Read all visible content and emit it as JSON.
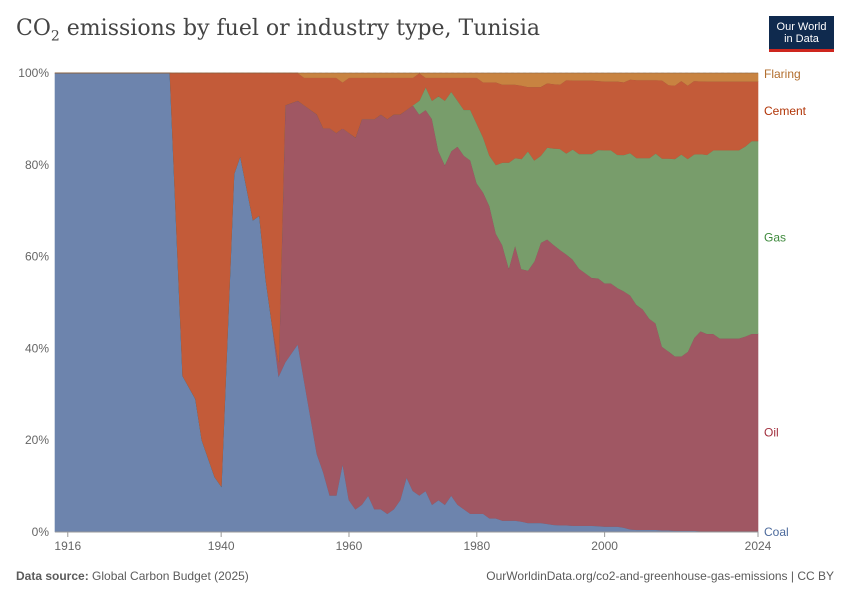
{
  "header": {
    "title_main": "CO",
    "title_sub": "2",
    "title_rest": " emissions by fuel or industry type, Tunisia",
    "logo_line1": "Our World",
    "logo_line2": "in Data"
  },
  "footer": {
    "source_label": "Data source:",
    "source_value": " Global Carbon Budget (2025)",
    "url": "OurWorldinData.org/co2-and-greenhouse-gas-emissions | CC BY"
  },
  "chart_data": {
    "type": "area",
    "stacked": true,
    "percent": true,
    "title": "CO₂ emissions by fuel or industry type, Tunisia",
    "x_range": [
      1914,
      2024
    ],
    "ylim": [
      0,
      100
    ],
    "y_ticks": [
      "0%",
      "20%",
      "40%",
      "60%",
      "80%",
      "100%"
    ],
    "y_tick_values": [
      0,
      20,
      40,
      60,
      80,
      100
    ],
    "x_ticks": [
      "1916",
      "1940",
      "1960",
      "1980",
      "2000",
      "2024"
    ],
    "x_tick_values": [
      1916,
      1940,
      1960,
      1980,
      2000,
      2024
    ],
    "grid": "horizontal",
    "legend": "right, inline labels",
    "x": [
      1914,
      1932,
      1934,
      1936,
      1937,
      1939,
      1940,
      1942,
      1943,
      1945,
      1946,
      1947,
      1948,
      1949,
      1950,
      1952,
      1953,
      1955,
      1956,
      1957,
      1958,
      1959,
      1960,
      1961,
      1962,
      1963,
      1964,
      1965,
      1966,
      1967,
      1968,
      1969,
      1970,
      1971,
      1972,
      1973,
      1974,
      1975,
      1976,
      1977,
      1978,
      1979,
      1980,
      1981,
      1982,
      1983,
      1984,
      1985,
      1986,
      1987,
      1988,
      1989,
      1990,
      1991,
      1992,
      1993,
      1994,
      1995,
      1996,
      1997,
      1998,
      1999,
      2000,
      2001,
      2002,
      2003,
      2004,
      2005,
      2006,
      2007,
      2008,
      2009,
      2010,
      2011,
      2012,
      2013,
      2014,
      2015,
      2016,
      2017,
      2018,
      2019,
      2020,
      2021,
      2022,
      2023,
      2024
    ],
    "series": [
      {
        "name": "Coal",
        "color": "#6d84ad",
        "label_color": "#4c6a9c",
        "values": [
          100,
          100,
          34,
          29,
          20,
          12,
          10,
          78,
          82,
          68,
          69,
          55,
          45,
          34,
          37,
          41,
          33,
          17,
          13,
          8,
          8,
          15,
          7,
          5,
          6,
          8,
          5,
          5,
          4,
          5,
          7,
          12,
          9,
          8,
          9,
          6,
          7,
          6,
          8,
          6,
          5,
          4,
          4,
          4,
          3,
          3,
          2.5,
          2.5,
          2.5,
          2.3,
          2,
          2,
          2,
          1.8,
          1.6,
          1.5,
          1.5,
          1.4,
          1.4,
          1.4,
          1.4,
          1.3,
          1.2,
          1.2,
          1.2,
          1,
          0.6,
          0.5,
          0.5,
          0.5,
          0.5,
          0.4,
          0.4,
          0.3,
          0.3,
          0.3,
          0.3,
          0.2,
          0.2,
          0.2,
          0.2,
          0.2,
          0.2,
          0.2,
          0.2,
          0.2,
          0.2
        ]
      },
      {
        "name": "Oil",
        "color": "#a05763",
        "label_color": "#a2303e",
        "values": [
          0,
          0,
          0,
          0,
          0,
          0,
          0,
          0,
          0,
          0,
          0,
          0,
          0,
          3,
          56,
          53,
          60,
          74,
          75,
          80,
          79,
          73,
          80,
          81,
          84,
          82,
          85,
          86,
          86,
          86,
          84,
          80,
          84,
          83,
          83,
          84,
          76,
          74,
          75,
          78,
          77,
          77,
          72,
          70,
          68,
          62,
          60,
          55,
          60,
          55,
          55,
          57,
          61,
          62,
          61,
          60,
          59,
          58,
          56,
          55,
          54,
          54,
          53,
          53,
          52,
          52,
          51,
          49,
          48,
          46,
          45,
          40,
          39,
          38,
          38,
          39,
          42,
          44,
          43,
          43,
          42,
          42,
          42,
          42,
          42,
          43,
          43
        ]
      },
      {
        "name": "Gas",
        "color": "#789d6b",
        "label_color": "#3f8a3d",
        "values": [
          0,
          0,
          0,
          0,
          0,
          0,
          0,
          0,
          0,
          0,
          0,
          0,
          0,
          0,
          0,
          0,
          0,
          0,
          0,
          0,
          0,
          0,
          0,
          0,
          0,
          0,
          0,
          0,
          0,
          0,
          0,
          0,
          0,
          3,
          5,
          4,
          12,
          14,
          13,
          10,
          10,
          11,
          13,
          12,
          11,
          15,
          18,
          23,
          19,
          24,
          26,
          22,
          19,
          20,
          21,
          22,
          22,
          24,
          25,
          26,
          27,
          28,
          29,
          29,
          29,
          30,
          31,
          32,
          33,
          35,
          37,
          41,
          42,
          43,
          44,
          42,
          40,
          39,
          39,
          40,
          41,
          41,
          41,
          41,
          41,
          42,
          42
        ]
      },
      {
        "name": "Cement",
        "color": "#c35b39",
        "label_color": "#b13507",
        "values": [
          0,
          0,
          66,
          71,
          80,
          88,
          90,
          22,
          18,
          32,
          31,
          45,
          55,
          63,
          7,
          6,
          6,
          8,
          11,
          11,
          12,
          10,
          12,
          13,
          9,
          9,
          9,
          8,
          9,
          8,
          8,
          7,
          6,
          6,
          2,
          5,
          4,
          5,
          3,
          5,
          7,
          7,
          10,
          12,
          16,
          18,
          17,
          17,
          16,
          16,
          14,
          16,
          15,
          14,
          14,
          14,
          16,
          15,
          16,
          16,
          16,
          15,
          15,
          15,
          16,
          16,
          16,
          17,
          17,
          17,
          16,
          17,
          16,
          16,
          16,
          16,
          16,
          16,
          16,
          15,
          15,
          15,
          15,
          15,
          14,
          13,
          13
        ]
      },
      {
        "name": "Flaring",
        "color": "#c88341",
        "label_color": "#b26e2e",
        "values": [
          0,
          0,
          0,
          0,
          0,
          0,
          0,
          0,
          0,
          0,
          0,
          0,
          0,
          0,
          0,
          0,
          1,
          1,
          1,
          1,
          1,
          2,
          1,
          1,
          1,
          1,
          1,
          1,
          1,
          1,
          1,
          1,
          1,
          0,
          1,
          1,
          1,
          1,
          1,
          1,
          1,
          1,
          1,
          2,
          2,
          2,
          2.5,
          2.5,
          2.5,
          2.7,
          3,
          3,
          3,
          2.2,
          2.4,
          2.5,
          1.5,
          1.6,
          1.6,
          1.6,
          1.6,
          1.7,
          1.8,
          1.8,
          1.8,
          2,
          1.4,
          1.5,
          1.5,
          1.5,
          1.5,
          1.6,
          2.6,
          2.7,
          1.7,
          2.7,
          1.7,
          1.8,
          1.8,
          1.8,
          1.8,
          1.8,
          1.8,
          1.8,
          1.8,
          1.8,
          1.8
        ]
      }
    ]
  }
}
